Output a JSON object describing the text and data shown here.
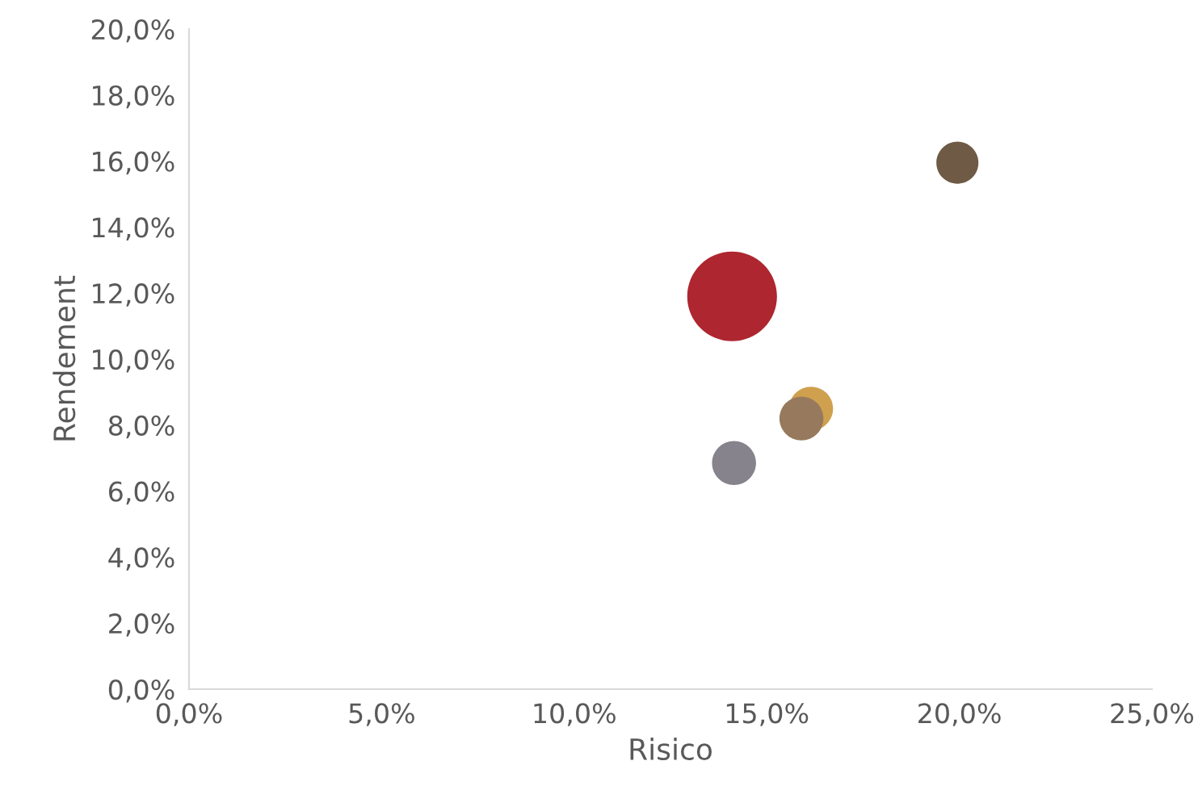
{
  "chart_data": {
    "type": "bubble",
    "xlabel": "Risico",
    "ylabel": "Rendement",
    "x": [
      14.1,
      19.95,
      16.15,
      15.9,
      14.15
    ],
    "values": [
      11.9,
      15.95,
      8.5,
      8.2,
      6.85
    ],
    "sizes": [
      1,
      0.22,
      0.24,
      0.24,
      0.24
    ],
    "colors": [
      "#ae262f",
      "#6e5a45",
      "#cfa04e",
      "#977a5d",
      "#86838c"
    ],
    "xlim": [
      0,
      25
    ],
    "ylim": [
      0,
      20
    ],
    "xticks": [
      {
        "value": 0,
        "label": "0,0%"
      },
      {
        "value": 5,
        "label": "5,0%"
      },
      {
        "value": 10,
        "label": "10,0%"
      },
      {
        "value": 15,
        "label": "15,0%"
      },
      {
        "value": 20,
        "label": "20,0%"
      },
      {
        "value": 25,
        "label": "25,0%"
      }
    ],
    "yticks": [
      {
        "value": 0,
        "label": "0,0%"
      },
      {
        "value": 2,
        "label": "2,0%"
      },
      {
        "value": 4,
        "label": "4,0%"
      },
      {
        "value": 6,
        "label": "6,0%"
      },
      {
        "value": 8,
        "label": "8,0%"
      },
      {
        "value": 10,
        "label": "10,0%"
      },
      {
        "value": 12,
        "label": "12,0%"
      },
      {
        "value": 14,
        "label": "14,0%"
      },
      {
        "value": 16,
        "label": "16,0%"
      },
      {
        "value": 18,
        "label": "18,0%"
      },
      {
        "value": 20,
        "label": "20,0%"
      }
    ],
    "grid": false,
    "legend": false
  }
}
